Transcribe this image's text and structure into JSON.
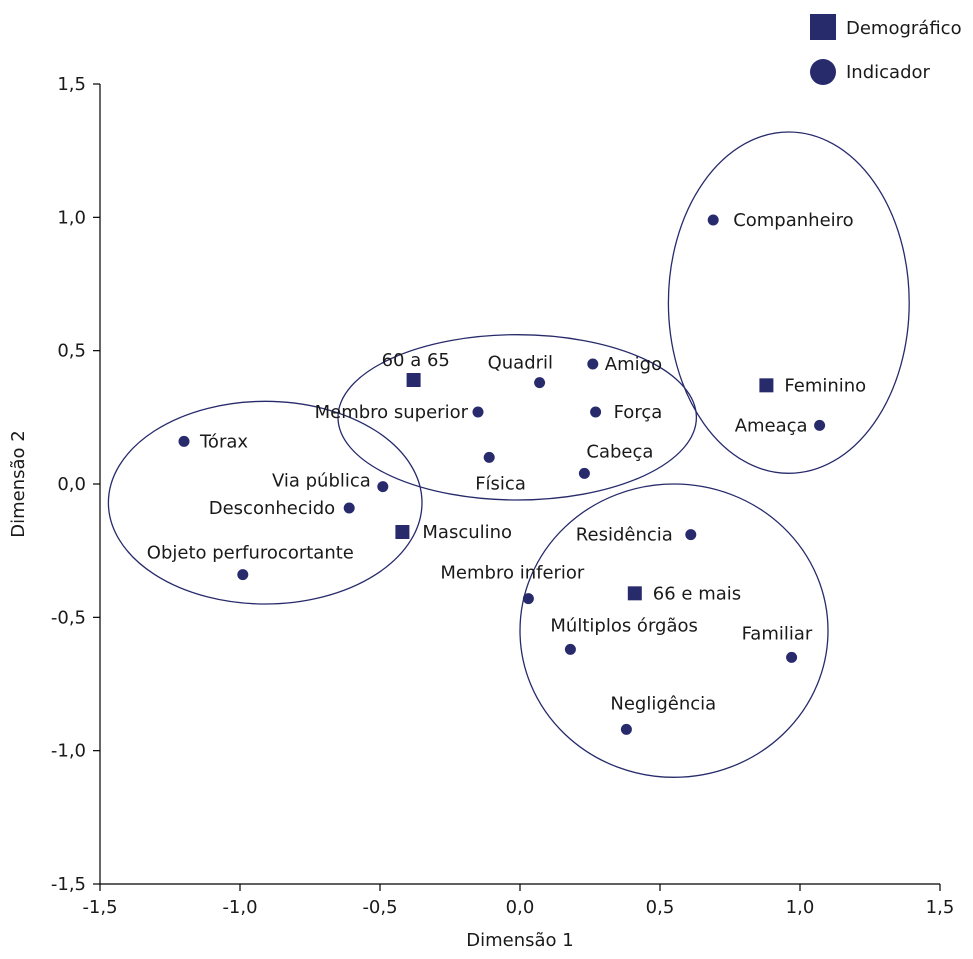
{
  "chart_data": {
    "type": "scatter",
    "xlabel": "Dimensão 1",
    "ylabel": "Dimensão 2",
    "xlim": [
      -1.5,
      1.5
    ],
    "ylim": [
      -1.5,
      1.5
    ],
    "xticks": [
      -1.5,
      -1.0,
      -0.5,
      0.0,
      0.5,
      1.0,
      1.5
    ],
    "yticks": [
      -1.5,
      -1.0,
      -0.5,
      0.0,
      0.5,
      1.0,
      1.5
    ],
    "xtick_labels": [
      "-1,5",
      "-1,0",
      "-0,5",
      "0,0",
      "0,5",
      "1,0",
      "1,5"
    ],
    "ytick_labels": [
      "-1,5",
      "-1,0",
      "-0,5",
      "0,0",
      "0,5",
      "1,0",
      "1,5"
    ],
    "grid": false,
    "legend_position": "top-right",
    "marker_color": "#272a6b",
    "series": [
      {
        "name": "Demográfico",
        "marker": "square",
        "points": [
          {
            "label": "60 a 65",
            "x": -0.38,
            "y": 0.39
          },
          {
            "label": "Masculino",
            "x": -0.42,
            "y": -0.18
          },
          {
            "label": "Feminino",
            "x": 0.88,
            "y": 0.37
          },
          {
            "label": "66 e mais",
            "x": 0.41,
            "y": -0.41
          }
        ]
      },
      {
        "name": "Indicador",
        "marker": "circle",
        "points": [
          {
            "label": "Companheiro",
            "x": 0.69,
            "y": 0.99
          },
          {
            "label": "Ameaça",
            "x": 1.07,
            "y": 0.22
          },
          {
            "label": "Quadril",
            "x": 0.07,
            "y": 0.38
          },
          {
            "label": "Amigo",
            "x": 0.26,
            "y": 0.45
          },
          {
            "label": "Membro superior",
            "x": -0.15,
            "y": 0.27
          },
          {
            "label": "Força",
            "x": 0.27,
            "y": 0.27
          },
          {
            "label": "Física",
            "x": -0.11,
            "y": 0.1
          },
          {
            "label": "Cabeça",
            "x": 0.23,
            "y": 0.04
          },
          {
            "label": "Tórax",
            "x": -1.2,
            "y": 0.16
          },
          {
            "label": "Via pública",
            "x": -0.49,
            "y": -0.01
          },
          {
            "label": "Desconhecido",
            "x": -0.61,
            "y": -0.09
          },
          {
            "label": "Objeto perfurocortante",
            "x": -0.99,
            "y": -0.34
          },
          {
            "label": "Residência",
            "x": 0.61,
            "y": -0.19
          },
          {
            "label": "Membro inferior",
            "x": 0.03,
            "y": -0.43
          },
          {
            "label": "Múltiplos órgãos",
            "x": 0.18,
            "y": -0.62
          },
          {
            "label": "Familiar",
            "x": 0.97,
            "y": -0.65
          },
          {
            "label": "Negligência",
            "x": 0.38,
            "y": -0.92
          }
        ]
      }
    ],
    "clusters": [
      {
        "cx": -0.91,
        "cy": -0.07,
        "rx": 0.56,
        "ry": 0.38
      },
      {
        "cx": -0.01,
        "cy": 0.25,
        "rx": 0.64,
        "ry": 0.31
      },
      {
        "cx": 0.96,
        "cy": 0.68,
        "rx": 0.43,
        "ry": 0.64
      },
      {
        "cx": 0.55,
        "cy": -0.55,
        "rx": 0.55,
        "ry": 0.55
      }
    ]
  }
}
